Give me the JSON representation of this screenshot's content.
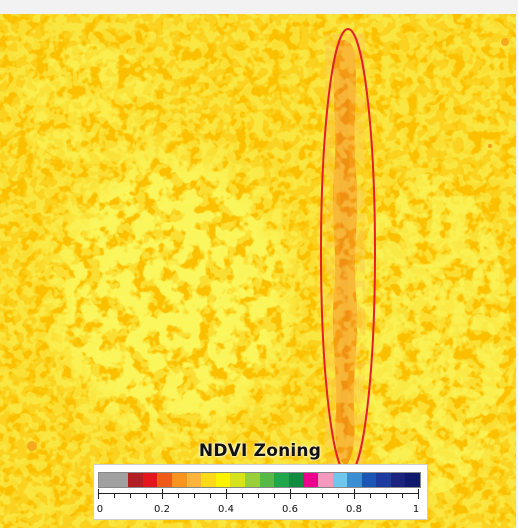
{
  "map": {
    "background_color": "#fbc100",
    "patch_color": "#f3ee1c",
    "strip_color": "#f59c15",
    "strip_dark_color": "#ef8e12",
    "highlight_color": "#e3202a",
    "highlight_shape": "ellipse"
  },
  "legend": {
    "title": "NDVI Zoning",
    "colors": [
      "#a0a0a0",
      "#a0a0a0",
      "#b21e23",
      "#e5171e",
      "#ef5a1b",
      "#f7941d",
      "#fbb33b",
      "#fcd919",
      "#fff200",
      "#d6e21e",
      "#9bce3b",
      "#57b948",
      "#1fa84a",
      "#128c3f",
      "#ec008c",
      "#f49ac1",
      "#70c7e9",
      "#3a8fd3",
      "#1c56b4",
      "#1d3a9e",
      "#1a237e",
      "#0d1a6e"
    ],
    "ticks": [
      "0",
      "0.2",
      "0.4",
      "0.6",
      "0.8",
      "1"
    ],
    "tick_values": [
      0,
      0.2,
      0.4,
      0.6,
      0.8,
      1
    ],
    "range": [
      0,
      1
    ]
  }
}
